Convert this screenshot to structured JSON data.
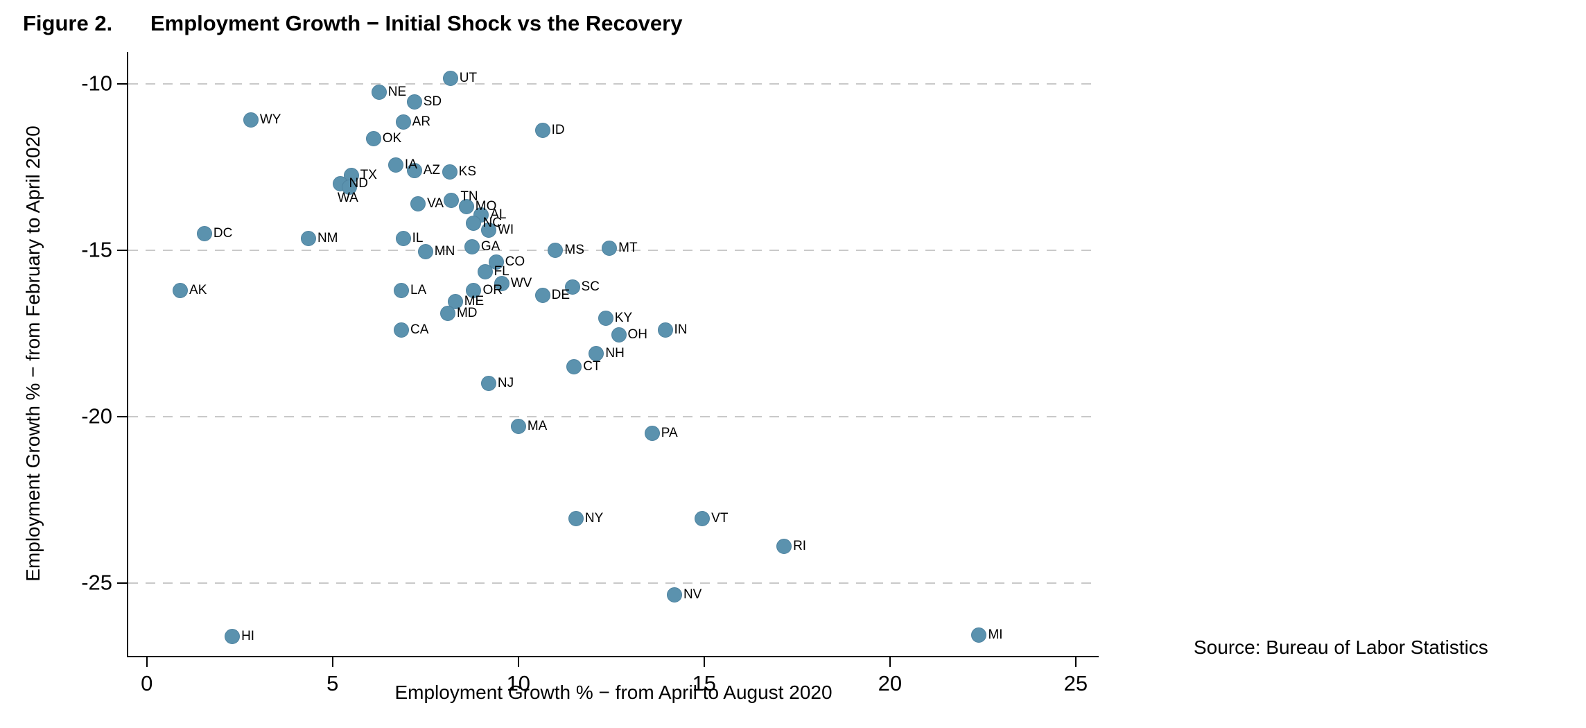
{
  "figure": {
    "label": "Figure 2.",
    "title": "Employment Growth − Initial Shock vs the Recovery",
    "source": "Source: Bureau of Labor Statistics"
  },
  "chart_data": {
    "type": "scatter",
    "title": "Employment Growth − Initial Shock vs the Recovery",
    "xlabel": "Employment Growth % − from April to August 2020",
    "ylabel": "Employment Growth % − from February to April 2020",
    "xlim": [
      -0.5,
      25.6
    ],
    "ylim": [
      -27.2,
      -9.05
    ],
    "xticks": [
      0,
      5,
      10,
      15,
      20,
      25
    ],
    "yticks": [
      -10,
      -15,
      -20,
      -25
    ],
    "grid": "horizontal-dashed",
    "legend": "none",
    "marker_color": "#5b92ae",
    "points": [
      {
        "state": "UT",
        "x": 8.17,
        "y": -9.85
      },
      {
        "state": "NE",
        "x": 6.25,
        "y": -10.25
      },
      {
        "state": "SD",
        "x": 7.2,
        "y": -10.55
      },
      {
        "state": "WY",
        "x": 2.8,
        "y": -11.1
      },
      {
        "state": "AR",
        "x": 6.9,
        "y": -11.15
      },
      {
        "state": "ID",
        "x": 10.65,
        "y": -11.4
      },
      {
        "state": "OK",
        "x": 6.1,
        "y": -11.65
      },
      {
        "state": "IA",
        "x": 6.7,
        "y": -12.45
      },
      {
        "state": "AZ",
        "x": 7.2,
        "y": -12.6
      },
      {
        "state": "KS",
        "x": 8.15,
        "y": -12.65
      },
      {
        "state": "TX",
        "x": 5.5,
        "y": -12.75
      },
      {
        "state": "ND",
        "x": 5.2,
        "y": -13.0
      },
      {
        "state": "WA",
        "x": 5.45,
        "y": -13.1,
        "ldx": -30,
        "ldy": 16
      },
      {
        "state": "TN",
        "x": 8.2,
        "y": -13.5,
        "ldy": -5
      },
      {
        "state": "VA",
        "x": 7.3,
        "y": -13.6
      },
      {
        "state": "MO",
        "x": 8.6,
        "y": -13.7
      },
      {
        "state": "AL",
        "x": 9.0,
        "y": -13.95
      },
      {
        "state": "NC",
        "x": 8.8,
        "y": -14.2
      },
      {
        "state": "WI",
        "x": 9.2,
        "y": -14.4
      },
      {
        "state": "DC",
        "x": 1.55,
        "y": -14.5
      },
      {
        "state": "NM",
        "x": 4.35,
        "y": -14.65
      },
      {
        "state": "IL",
        "x": 6.9,
        "y": -14.65
      },
      {
        "state": "GA",
        "x": 8.75,
        "y": -14.9
      },
      {
        "state": "MT",
        "x": 12.45,
        "y": -14.95
      },
      {
        "state": "MS",
        "x": 11.0,
        "y": -15.0
      },
      {
        "state": "MN",
        "x": 7.5,
        "y": -15.05
      },
      {
        "state": "CO",
        "x": 9.4,
        "y": -15.35
      },
      {
        "state": "FL",
        "x": 9.1,
        "y": -15.65
      },
      {
        "state": "WV",
        "x": 9.55,
        "y": -16.0
      },
      {
        "state": "SC",
        "x": 11.45,
        "y": -16.1
      },
      {
        "state": "AK",
        "x": 0.9,
        "y": -16.2
      },
      {
        "state": "LA",
        "x": 6.85,
        "y": -16.2
      },
      {
        "state": "OR",
        "x": 8.8,
        "y": -16.2
      },
      {
        "state": "DE",
        "x": 10.65,
        "y": -16.35
      },
      {
        "state": "ME",
        "x": 8.3,
        "y": -16.55
      },
      {
        "state": "MD",
        "x": 8.1,
        "y": -16.9
      },
      {
        "state": "KY",
        "x": 12.35,
        "y": -17.05
      },
      {
        "state": "CA",
        "x": 6.85,
        "y": -17.4
      },
      {
        "state": "IN",
        "x": 13.95,
        "y": -17.4
      },
      {
        "state": "OH",
        "x": 12.7,
        "y": -17.55
      },
      {
        "state": "NH",
        "x": 12.1,
        "y": -18.1
      },
      {
        "state": "CT",
        "x": 11.5,
        "y": -18.5
      },
      {
        "state": "NJ",
        "x": 9.2,
        "y": -19.0
      },
      {
        "state": "MA",
        "x": 10.0,
        "y": -20.3
      },
      {
        "state": "PA",
        "x": 13.6,
        "y": -20.5
      },
      {
        "state": "NY",
        "x": 11.55,
        "y": -23.05
      },
      {
        "state": "VT",
        "x": 14.95,
        "y": -23.05
      },
      {
        "state": "RI",
        "x": 17.15,
        "y": -23.9
      },
      {
        "state": "NV",
        "x": 14.2,
        "y": -25.35
      },
      {
        "state": "MI",
        "x": 22.4,
        "y": -26.55
      },
      {
        "state": "HI",
        "x": 2.3,
        "y": -26.6
      }
    ]
  }
}
